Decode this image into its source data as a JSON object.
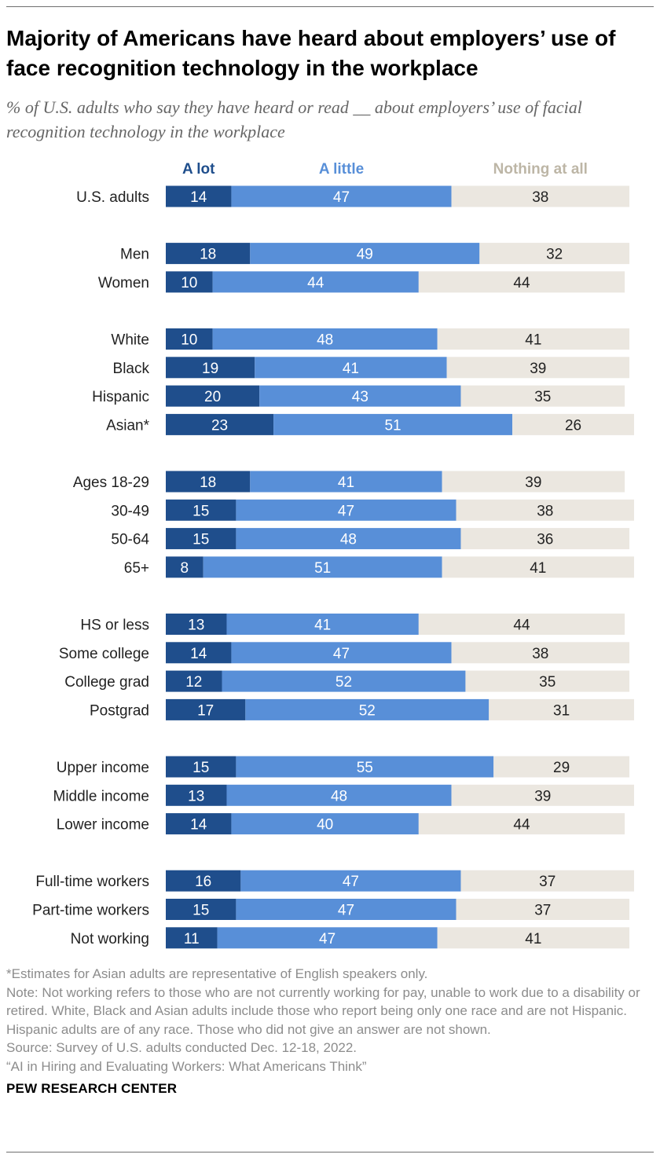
{
  "header": {
    "title": "Majority of Americans have heard about employers’ use of face recognition technology in the workplace",
    "subtitle": "% of U.S. adults who say they have heard or read __ about employers’ use of facial recognition technology in the workplace"
  },
  "chart_data": {
    "type": "bar",
    "orientation": "horizontal",
    "stacked": true,
    "title": "Majority of Americans have heard about employers’ use of face recognition technology in the workplace",
    "xlabel": "",
    "ylabel": "",
    "xlim": [
      0,
      100
    ],
    "legend_position": "top",
    "series": [
      {
        "name": "A lot",
        "color": "#1f4e8c",
        "label_color": "#ffffff",
        "values": [
          14,
          18,
          10,
          10,
          19,
          20,
          23,
          18,
          15,
          15,
          8,
          13,
          14,
          12,
          17,
          15,
          13,
          14,
          16,
          15,
          11
        ]
      },
      {
        "name": "A little",
        "color": "#588fd8",
        "label_color": "#ffffff",
        "values": [
          47,
          49,
          44,
          48,
          41,
          43,
          51,
          41,
          47,
          48,
          51,
          41,
          47,
          52,
          52,
          55,
          48,
          40,
          47,
          47,
          47
        ]
      },
      {
        "name": "Nothing at all",
        "color": "#ebe7e0",
        "label_color": "#222222",
        "values": [
          38,
          32,
          44,
          41,
          39,
          35,
          26,
          39,
          38,
          36,
          41,
          44,
          38,
          35,
          31,
          29,
          39,
          44,
          37,
          37,
          41
        ]
      }
    ],
    "categories": [
      "U.S. adults",
      "Men",
      "Women",
      "White",
      "Black",
      "Hispanic",
      "Asian*",
      "Ages 18-29",
      "30-49",
      "50-64",
      "65+",
      "HS or less",
      "Some college",
      "College grad",
      "Postgrad",
      "Upper income",
      "Middle income",
      "Lower income",
      "Full-time workers",
      "Part-time workers",
      "Not working"
    ],
    "groups": [
      [
        0
      ],
      [
        1,
        2
      ],
      [
        3,
        4,
        5,
        6
      ],
      [
        7,
        8,
        9,
        10
      ],
      [
        11,
        12,
        13,
        14
      ],
      [
        15,
        16,
        17
      ],
      [
        18,
        19,
        20
      ]
    ]
  },
  "footer": {
    "notes": [
      "*Estimates for Asian adults are representative of English speakers only.",
      "Note: Not working refers to those who are not currently working for pay, unable to work due to a disability or retired. White, Black and Asian adults include those who report being only one race and are not Hispanic. Hispanic adults are of any race. Those who did not give an answer are not shown.",
      "Source: Survey of U.S. adults conducted Dec. 12-18, 2022.",
      "“AI in Hiring and Evaluating Workers: What Americans Think”"
    ],
    "brand": "PEW RESEARCH CENTER"
  }
}
